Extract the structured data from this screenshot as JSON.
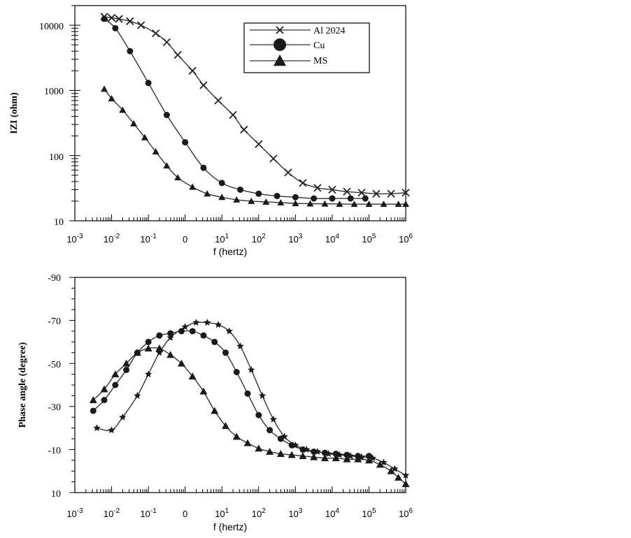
{
  "chart_data": [
    {
      "type": "line",
      "title": "",
      "xlabel": "f (hertz)",
      "ylabel": "IZI (ohm)",
      "xscale": "log",
      "yscale": "log",
      "xlim_exp": [
        -3,
        6
      ],
      "ylim": [
        10,
        15000
      ],
      "x_tick_labels": [
        {
          "base": "10",
          "exp": "-3"
        },
        {
          "base": "10",
          "exp": "-2"
        },
        {
          "base": "10",
          "exp": "-1"
        },
        {
          "base": "0",
          "exp": ""
        },
        {
          "base": "10",
          "exp": "1"
        },
        {
          "base": "10",
          "exp": "2"
        },
        {
          "base": "10",
          "exp": "3"
        },
        {
          "base": "10",
          "exp": "4"
        },
        {
          "base": "10",
          "exp": "5"
        },
        {
          "base": "10",
          "exp": "6"
        }
      ],
      "y_tick_labels": [
        "10",
        "100",
        "1000",
        "10000"
      ],
      "legend_position": "top-right",
      "series": [
        {
          "name": "Al 2024",
          "marker": "x",
          "logf": [
            -2.2,
            -2.0,
            -1.8,
            -1.5,
            -1.2,
            -0.8,
            -0.5,
            -0.2,
            0.2,
            0.5,
            0.9,
            1.3,
            1.6,
            2.0,
            2.4,
            2.8,
            3.2,
            3.6,
            4.0,
            4.4,
            4.8,
            5.2,
            5.6,
            6.0
          ],
          "values": [
            13500,
            13000,
            12500,
            11500,
            10000,
            7500,
            5500,
            3500,
            2000,
            1200,
            700,
            420,
            250,
            150,
            90,
            55,
            38,
            32,
            30,
            28,
            27,
            26,
            26,
            27
          ]
        },
        {
          "name": "Cu",
          "marker": "circle",
          "logf": [
            -2.2,
            -1.9,
            -1.5,
            -1.0,
            -0.5,
            0.0,
            0.5,
            1.0,
            1.5,
            2.0,
            2.5,
            3.0,
            3.5,
            4.0,
            4.5,
            4.9
          ],
          "values": [
            12500,
            9000,
            4000,
            1300,
            420,
            160,
            65,
            38,
            30,
            26,
            24,
            23,
            22,
            22,
            22,
            22
          ]
        },
        {
          "name": "MS",
          "marker": "triangle",
          "logf": [
            -2.2,
            -2.0,
            -1.7,
            -1.4,
            -1.1,
            -0.8,
            -0.5,
            -0.2,
            0.2,
            0.6,
            1.0,
            1.4,
            1.8,
            2.2,
            2.6,
            3.0,
            3.4,
            3.8,
            4.2,
            4.6,
            5.0,
            5.4,
            5.8,
            6.0
          ],
          "values": [
            1050,
            750,
            500,
            310,
            190,
            115,
            70,
            46,
            33,
            26,
            23,
            21,
            20,
            19.5,
            19,
            18.5,
            18.3,
            18.2,
            18.1,
            18,
            18,
            18,
            18,
            18
          ]
        }
      ]
    },
    {
      "type": "line",
      "title": "",
      "xlabel": "f (hertz)",
      "ylabel": "Phase angle (degree)",
      "xscale": "log",
      "xlim_exp": [
        -3,
        6
      ],
      "ylim": [
        10,
        -90
      ],
      "x_tick_labels": [
        {
          "base": "10",
          "exp": "-3"
        },
        {
          "base": "10",
          "exp": "-2"
        },
        {
          "base": "10",
          "exp": "-1"
        },
        {
          "base": "0",
          "exp": ""
        },
        {
          "base": "10",
          "exp": "1"
        },
        {
          "base": "10",
          "exp": "2"
        },
        {
          "base": "10",
          "exp": "3"
        },
        {
          "base": "10",
          "exp": "4"
        },
        {
          "base": "10",
          "exp": "5"
        },
        {
          "base": "10",
          "exp": "6"
        }
      ],
      "y_tick_labels": [
        "-90",
        "-70",
        "-50",
        "-30",
        "-10",
        "10"
      ],
      "series": [
        {
          "name": "Al 2024",
          "marker": "star",
          "logf": [
            -2.4,
            -2.0,
            -1.7,
            -1.3,
            -1.0,
            -0.7,
            -0.4,
            0.0,
            0.3,
            0.6,
            0.9,
            1.2,
            1.5,
            1.8,
            2.1,
            2.4,
            2.7,
            3.0,
            3.3,
            3.6,
            3.9,
            4.2,
            4.5,
            4.8,
            5.1,
            5.4,
            5.7,
            6.0
          ],
          "values": [
            -20,
            -19,
            -25,
            -35,
            -45,
            -55,
            -62,
            -67,
            -69,
            -69,
            -68,
            -65,
            -58,
            -47,
            -35,
            -24,
            -16,
            -12,
            -10,
            -9,
            -8,
            -7.5,
            -7,
            -6.5,
            -6,
            -4,
            -1,
            2
          ]
        },
        {
          "name": "Cu",
          "marker": "circle",
          "logf": [
            -2.5,
            -2.2,
            -1.9,
            -1.6,
            -1.3,
            -1.0,
            -0.7,
            -0.4,
            -0.1,
            0.2,
            0.5,
            0.8,
            1.1,
            1.4,
            1.7,
            2.0,
            2.3,
            2.6,
            2.9,
            3.2,
            3.5,
            3.8,
            4.1,
            4.4,
            4.7,
            5.0
          ],
          "values": [
            -28,
            -33,
            -40,
            -47,
            -55,
            -60,
            -63,
            -64,
            -65,
            -65,
            -63,
            -60,
            -55,
            -46,
            -36,
            -26,
            -19,
            -15,
            -12,
            -10,
            -9,
            -8.5,
            -8,
            -7.5,
            -7,
            -7
          ]
        },
        {
          "name": "MS",
          "marker": "triangle",
          "logf": [
            -2.5,
            -2.2,
            -1.9,
            -1.6,
            -1.3,
            -1.0,
            -0.7,
            -0.4,
            -0.1,
            0.2,
            0.5,
            0.8,
            1.1,
            1.4,
            1.7,
            2.0,
            2.3,
            2.6,
            2.9,
            3.2,
            3.5,
            3.8,
            4.1,
            4.4,
            4.7,
            5.0,
            5.3,
            5.6,
            5.8,
            6.0
          ],
          "values": [
            -33,
            -38,
            -45,
            -50,
            -55,
            -57,
            -57,
            -54,
            -50,
            -44,
            -37,
            -28,
            -21,
            -16,
            -13,
            -10.5,
            -9,
            -8,
            -7.5,
            -7,
            -6.5,
            -6,
            -6,
            -5.5,
            -5.5,
            -5,
            -3,
            0,
            3,
            6
          ]
        }
      ]
    }
  ]
}
